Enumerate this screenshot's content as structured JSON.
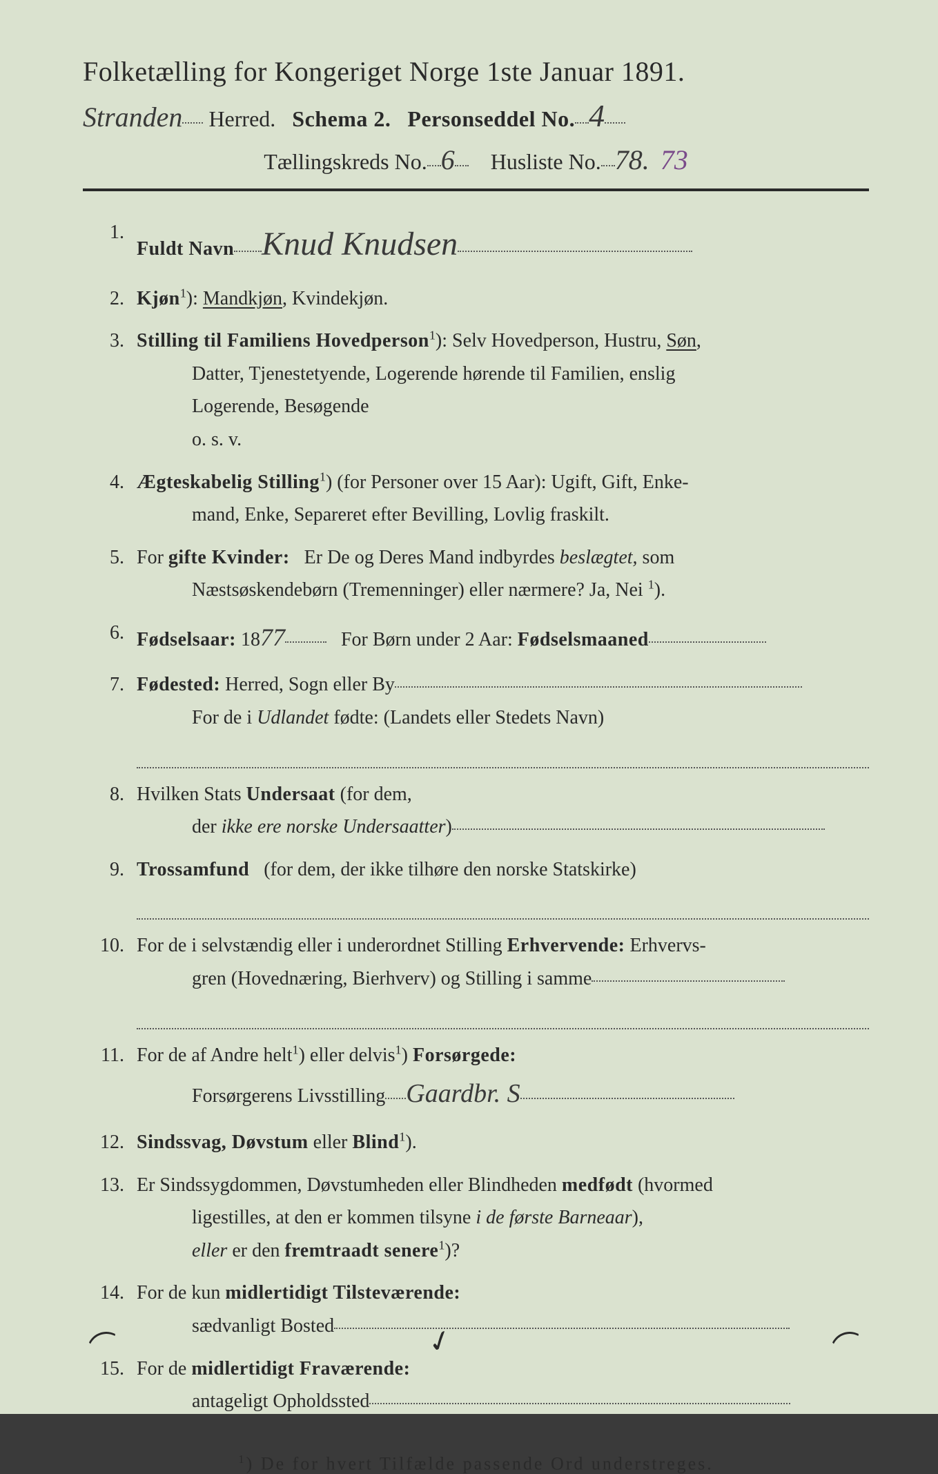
{
  "header": {
    "title": "Folketælling for Kongeriget Norge 1ste Januar 1891.",
    "herred_hw": "Stranden",
    "herred_label": "Herred.",
    "schema_label": "Schema 2.",
    "personseddel_label": "Personseddel No.",
    "personseddel_hw": "4",
    "kreds_label": "Tællingskreds No.",
    "kreds_hw": "6",
    "husliste_label": "Husliste No.",
    "husliste_hw": "78.",
    "husliste_hw2": "73"
  },
  "items": {
    "i1": {
      "num": "1.",
      "label": "Fuldt Navn",
      "hw": "Knud Knudsen"
    },
    "i2": {
      "num": "2.",
      "label": "Kjøn",
      "rest": "Mandkjøn, Kvindekjøn."
    },
    "i3": {
      "num": "3.",
      "label": "Stilling til Familiens Hovedperson",
      "line1a": "Selv Hovedperson, Hustru, ",
      "line1b": "Søn",
      "line1c": ",",
      "line2": "Datter, Tjenestetyende, Logerende hørende til Familien, enslig",
      "line3": "Logerende, Besøgende",
      "line4": "o. s. v."
    },
    "i4": {
      "num": "4.",
      "label": "Ægteskabelig Stilling",
      "rest1": "(for Personer over 15 Aar): Ugift, Gift, Enke-",
      "rest2": "mand, Enke, Separeret efter Bevilling, Lovlig fraskilt."
    },
    "i5": {
      "num": "5.",
      "pre": "For ",
      "label": "gifte Kvinder:",
      "rest1a": "Er De og Deres Mand indbyrdes ",
      "rest1b": "beslægtet,",
      "rest1c": " som",
      "rest2": "Næstsøskendebørn (Tremenninger) eller nærmere?  Ja, Nei "
    },
    "i6": {
      "num": "6.",
      "label": "Fødselsaar:",
      "year_prefix": "18",
      "year_hw": "77",
      "mid": "For Børn under 2 Aar:",
      "label2": "Fødselsmaaned"
    },
    "i7": {
      "num": "7.",
      "label": "Fødested:",
      "rest": "Herred, Sogn eller By",
      "line2a": "For de i ",
      "line2b": "Udlandet",
      "line2c": " fødte: (Landets eller Stedets Navn)"
    },
    "i8": {
      "num": "8.",
      "text1": "Hvilken Stats ",
      "label": "Undersaat",
      "text2": " (for dem,",
      "line2a": "der ",
      "line2b": "ikke ere norske Undersaatter"
    },
    "i9": {
      "num": "9.",
      "label": "Trossamfund",
      "rest": "(for dem, der ikke tilhøre den norske Statskirke)"
    },
    "i10": {
      "num": "10.",
      "text1": "For de i selvstændig eller i underordnet Stilling ",
      "label": "Erhvervende:",
      "text2": " Erhvervs-",
      "line2": "gren (Hovednæring, Bierhverv) og Stilling i samme"
    },
    "i11": {
      "num": "11.",
      "text1": "For de af Andre helt",
      "text2": " eller delvis",
      "label": "Forsørgede:",
      "line2": "Forsørgerens Livsstilling",
      "hw": "Gaardbr.  S"
    },
    "i12": {
      "num": "12.",
      "label": "Sindssvag, Døvstum",
      "mid": " eller ",
      "label2": "Blind"
    },
    "i13": {
      "num": "13.",
      "text1": "Er Sindssygdommen, Døvstumheden eller Blindheden ",
      "label": "medfødt",
      "text2": " (hvormed",
      "line2a": "ligestilles, at den er kommen tilsyne ",
      "line2b": "i de første Barneaar",
      "line2c": "),",
      "line3a": "eller",
      "line3b": " er den ",
      "line3c": "fremtraadt senere"
    },
    "i14": {
      "num": "14.",
      "text1": "For de kun ",
      "label": "midlertidigt Tilsteværende:",
      "line2": "sædvanligt Bosted"
    },
    "i15": {
      "num": "15.",
      "text1": "For de ",
      "label": "midlertidigt Fraværende:",
      "line2": "antageligt Opholdssted"
    }
  },
  "footnote_sup": "1",
  "footnote": ") De for hvert Tilfælde passende Ord understreges.",
  "sup1": "1",
  "paren": ")",
  "colon": ":",
  "period": ".",
  "qmark": "?",
  "comma": ","
}
